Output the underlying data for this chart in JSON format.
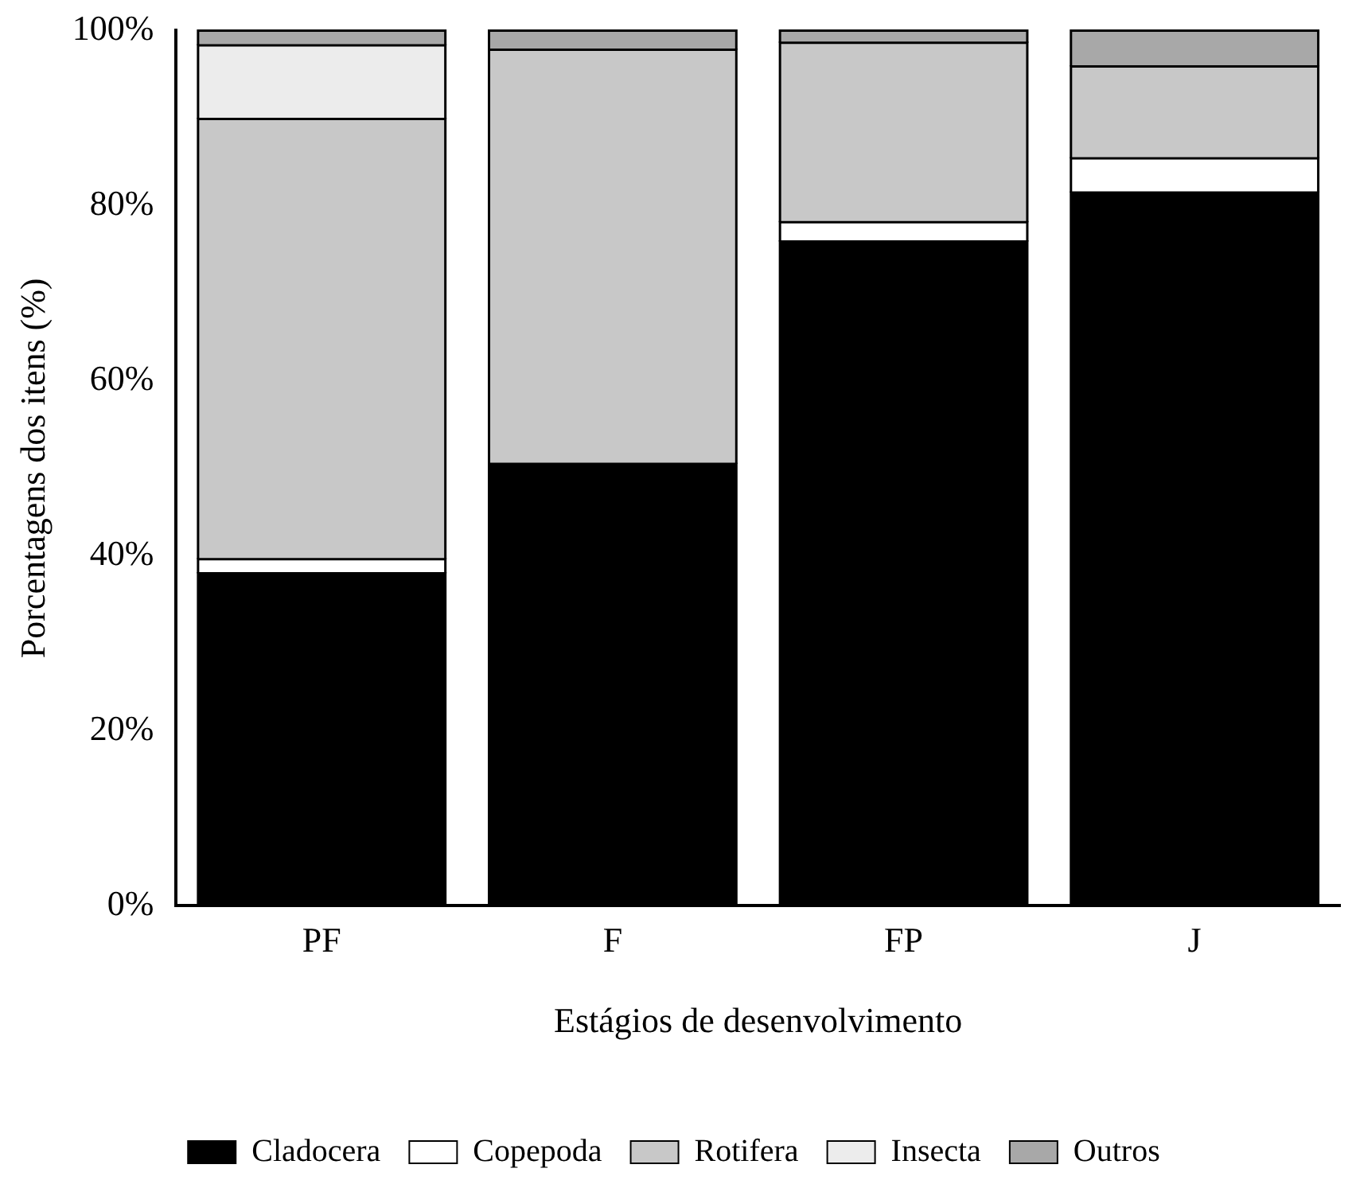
{
  "chart_data": {
    "type": "bar",
    "stacked": true,
    "xlabel": "Estágios de desenvolvimento",
    "ylabel": "Porcentagens dos itens (%)",
    "categories": [
      "PF",
      "F",
      "FP",
      "J"
    ],
    "series": [
      {
        "name": "Cladocera",
        "color": "#000000",
        "values": [
          38.0,
          50.5,
          75.9,
          81.5
        ]
      },
      {
        "name": "Copepoda",
        "color": "#ffffff",
        "values": [
          1.6,
          null,
          2.2,
          3.9
        ]
      },
      {
        "name": "Rotifera",
        "color": "#c8c8c8",
        "values": [
          50.3,
          47.3,
          20.5,
          10.5
        ]
      },
      {
        "name": "Insecta",
        "color": "#ececec",
        "values": [
          8.4,
          null,
          null,
          null
        ]
      },
      {
        "name": "Outros",
        "color": "#a8a8a8",
        "values": [
          1.7,
          2.2,
          1.4,
          4.1
        ]
      }
    ],
    "ylim": [
      0,
      100
    ],
    "yticks": [
      {
        "value": 0,
        "label": "0%"
      },
      {
        "value": 20,
        "label": "20%"
      },
      {
        "value": 40,
        "label": "40%"
      },
      {
        "value": 60,
        "label": "60%"
      },
      {
        "value": 80,
        "label": "80%"
      },
      {
        "value": 100,
        "label": "100%"
      }
    ],
    "grid": false,
    "legend": "bottom"
  }
}
